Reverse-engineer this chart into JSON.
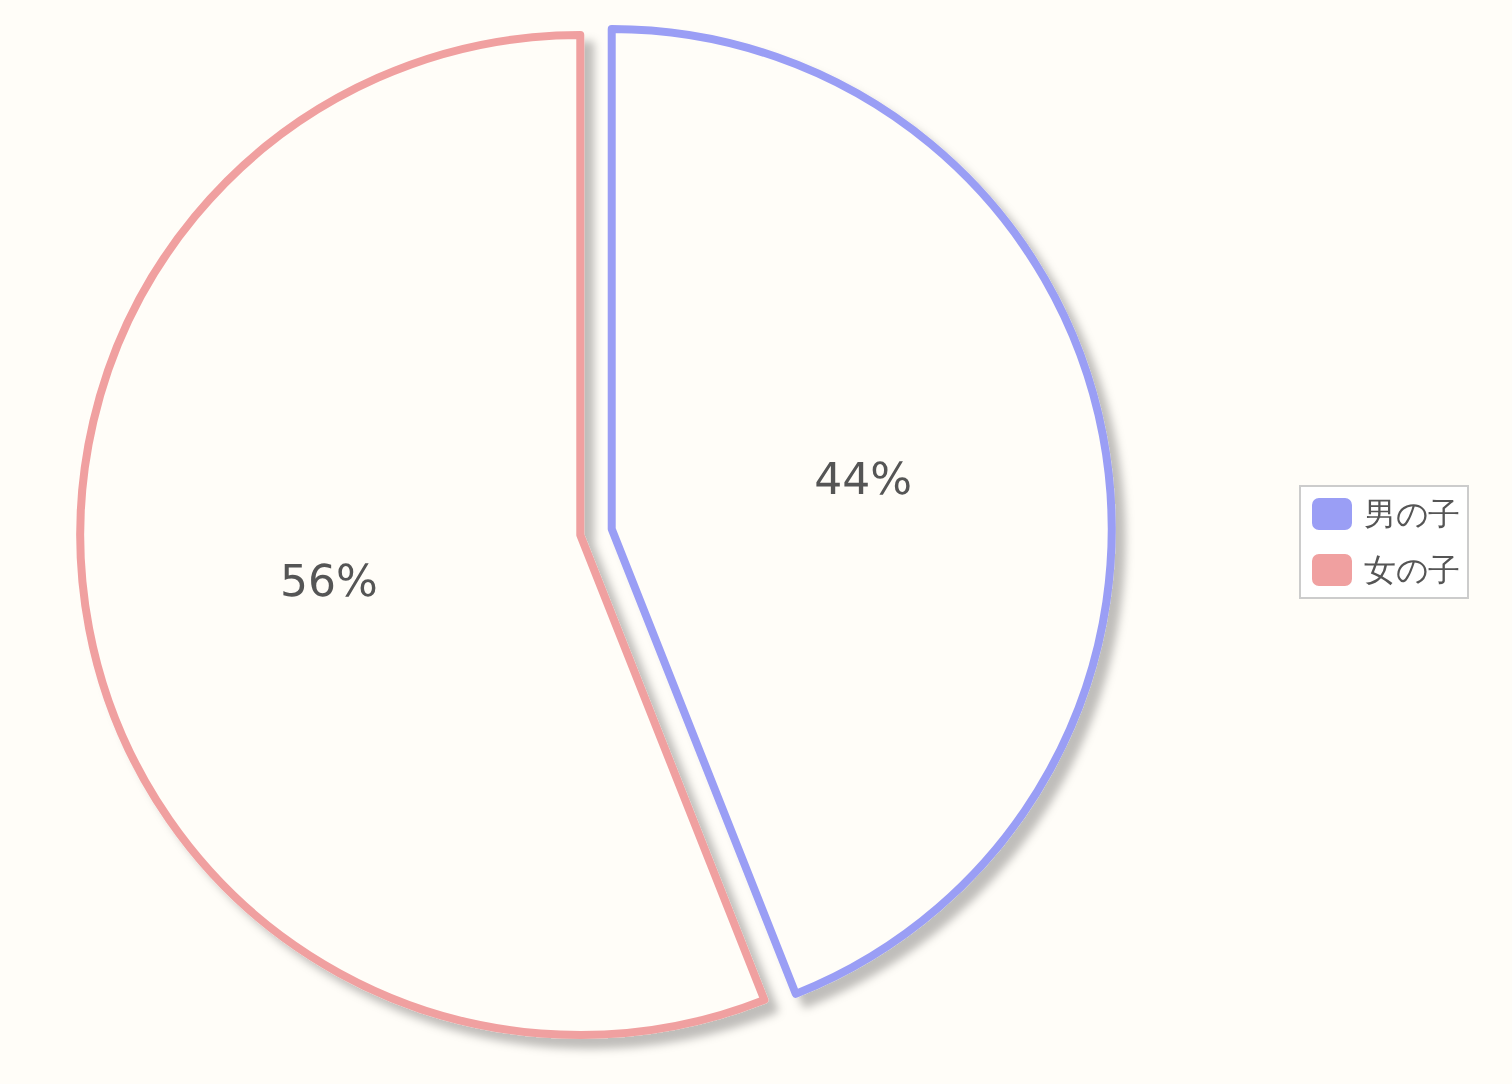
{
  "chart_data": {
    "type": "pie",
    "categories": [
      "男の子",
      "女の子"
    ],
    "values": [
      44,
      56
    ],
    "colors": [
      "#9a9ef5",
      "#f0a0a0"
    ],
    "value_labels": [
      "44%",
      "56%"
    ],
    "legend": "right"
  }
}
